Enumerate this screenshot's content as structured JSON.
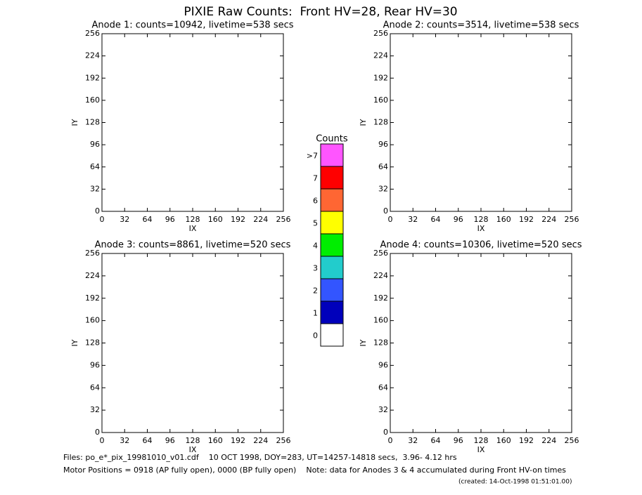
{
  "title": "PIXIE Raw Counts:  Front HV=28, Rear HV=30",
  "chart_data": [
    {
      "type": "heatmap",
      "title": "Anode 1: counts=10942, livetime=538 secs",
      "x_label": "IX",
      "y_label": "IY",
      "xlim": [
        0,
        256
      ],
      "ylim": [
        0,
        256
      ],
      "xticks": [
        0,
        32,
        64,
        96,
        128,
        160,
        192,
        224,
        256
      ],
      "yticks": [
        0,
        32,
        64,
        96,
        128,
        160,
        192,
        224,
        256
      ]
    },
    {
      "type": "heatmap",
      "title": "Anode 2: counts=3514, livetime=538 secs",
      "x_label": "IX",
      "y_label": "IY",
      "xlim": [
        0,
        256
      ],
      "ylim": [
        0,
        256
      ],
      "xticks": [
        0,
        32,
        64,
        96,
        128,
        160,
        192,
        224,
        256
      ],
      "yticks": [
        0,
        32,
        64,
        96,
        128,
        160,
        192,
        224,
        256
      ]
    },
    {
      "type": "heatmap",
      "title": "Anode 3: counts=8861, livetime=520 secs",
      "x_label": "IX",
      "y_label": "IY",
      "xlim": [
        0,
        256
      ],
      "ylim": [
        0,
        256
      ],
      "xticks": [
        0,
        32,
        64,
        96,
        128,
        160,
        192,
        224,
        256
      ],
      "yticks": [
        0,
        32,
        64,
        96,
        128,
        160,
        192,
        224,
        256
      ]
    },
    {
      "type": "heatmap",
      "title": "Anode 4: counts=10306, livetime=520 secs",
      "x_label": "IX",
      "y_label": "IY",
      "xlim": [
        0,
        256
      ],
      "ylim": [
        0,
        256
      ],
      "xticks": [
        0,
        32,
        64,
        96,
        128,
        160,
        192,
        224,
        256
      ],
      "yticks": [
        0,
        32,
        64,
        96,
        128,
        160,
        192,
        224,
        256
      ]
    }
  ],
  "colorbar": {
    "title": "Counts",
    "labels": [
      "0",
      "1",
      "2",
      "3",
      "4",
      "5",
      "6",
      "7",
      ">7"
    ],
    "colors": [
      "#ffffff",
      "#0000bb",
      "#3355ff",
      "#22cccc",
      "#00ee00",
      "#ffff00",
      "#ff6633",
      "#ff0000",
      "#ff55ff"
    ]
  },
  "footer": {
    "files": "Files: po_e*_pix_19981010_v01.cdf    10 OCT 1998, DOY=283, UT=14257-14818 secs,  3.96- 4.12 hrs",
    "motor": "Motor Positions = 0918 (AP fully open), 0000 (BP fully open)    Note: data for Anodes 3 & 4 accumulated during Front HV-on times",
    "created": "(created: 14-Oct-1998 01:51:01.00)"
  }
}
